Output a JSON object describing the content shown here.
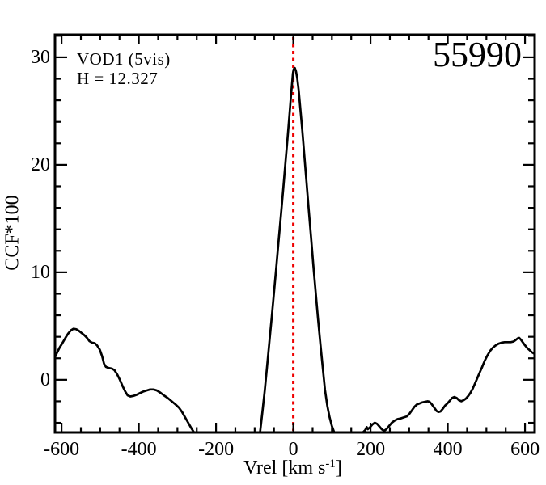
{
  "figure": {
    "annotation_line1": "VOD1 (5vis)",
    "annotation_line2": "H = 12.327",
    "epoch_label": "55990"
  },
  "axes_titles": {
    "x_main": "Vrel [km s",
    "x_sup": "-1",
    "x_end": "]",
    "y_title": "CCF*100"
  },
  "colors": {
    "background": "#ffffff",
    "frame": "#000000",
    "curve": "#000000",
    "text": "#000000",
    "marker_line": "#ee0000"
  },
  "chart_data": {
    "type": "line",
    "title": "",
    "xlabel": "Vrel [km s^-1]",
    "ylabel": "CCF*100",
    "xlim": [
      -617,
      625
    ],
    "ylim": [
      -4.9,
      32.1
    ],
    "grid": false,
    "legend": "none",
    "x_major_ticks": [
      -600,
      -400,
      -200,
      0,
      200,
      400,
      600
    ],
    "x_tick_labels": [
      "-600",
      "-400",
      "-200",
      "0",
      "200",
      "400",
      "600"
    ],
    "x_minor_step": 50,
    "y_major_ticks": [
      0,
      10,
      20,
      30
    ],
    "y_tick_labels": [
      "0",
      "10",
      "20",
      "30"
    ],
    "y_minor_step": 2,
    "marker_line": {
      "x": 0,
      "color": "#ee0000",
      "style": "dotted"
    },
    "annotations": [
      {
        "text": "VOD1 (5vis)",
        "x": -560,
        "y": 29.5
      },
      {
        "text": "H = 12.327",
        "x": -560,
        "y": 27.6
      },
      {
        "text": "55990",
        "x": 560,
        "y": 29.5
      }
    ],
    "series": [
      {
        "name": "CCF",
        "color": "#000000",
        "segments": [
          [
            [
              -617,
              2.1
            ],
            [
              -612,
              2.5
            ],
            [
              -605,
              3.0
            ],
            [
              -598,
              3.4
            ],
            [
              -590,
              3.9
            ],
            [
              -583,
              4.3
            ],
            [
              -576,
              4.6
            ],
            [
              -569,
              4.75
            ],
            [
              -562,
              4.7
            ],
            [
              -555,
              4.55
            ],
            [
              -548,
              4.35
            ],
            [
              -541,
              4.15
            ],
            [
              -534,
              3.9
            ],
            [
              -528,
              3.6
            ],
            [
              -521,
              3.45
            ],
            [
              -514,
              3.4
            ],
            [
              -508,
              3.2
            ],
            [
              -501,
              2.8
            ],
            [
              -495,
              2.2
            ],
            [
              -490,
              1.5
            ],
            [
              -485,
              1.2
            ],
            [
              -478,
              1.1
            ],
            [
              -470,
              1.05
            ],
            [
              -463,
              0.9
            ],
            [
              -456,
              0.5
            ],
            [
              -449,
              0.0
            ],
            [
              -442,
              -0.6
            ],
            [
              -435,
              -1.1
            ],
            [
              -429,
              -1.45
            ],
            [
              -422,
              -1.55
            ],
            [
              -414,
              -1.5
            ],
            [
              -406,
              -1.4
            ],
            [
              -398,
              -1.25
            ],
            [
              -389,
              -1.1
            ],
            [
              -380,
              -1.0
            ],
            [
              -371,
              -0.9
            ],
            [
              -362,
              -0.9
            ],
            [
              -353,
              -1.0
            ],
            [
              -344,
              -1.2
            ],
            [
              -335,
              -1.45
            ],
            [
              -325,
              -1.7
            ],
            [
              -315,
              -2.0
            ],
            [
              -305,
              -2.3
            ],
            [
              -296,
              -2.6
            ],
            [
              -288,
              -3.0
            ],
            [
              -280,
              -3.5
            ],
            [
              -272,
              -4.0
            ],
            [
              -264,
              -4.5
            ],
            [
              -257,
              -4.9
            ]
          ],
          [
            [
              -86,
              -4.9
            ],
            [
              -80,
              -3.0
            ],
            [
              -74,
              -1.0
            ],
            [
              -68,
              1.2
            ],
            [
              -62,
              3.5
            ],
            [
              -56,
              5.8
            ],
            [
              -50,
              8.1
            ],
            [
              -44,
              10.5
            ],
            [
              -38,
              12.9
            ],
            [
              -32,
              15.3
            ],
            [
              -26,
              17.8
            ],
            [
              -20,
              20.3
            ],
            [
              -15,
              22.4
            ],
            [
              -10,
              24.6
            ],
            [
              -6,
              26.4
            ],
            [
              -3,
              27.7
            ],
            [
              -1,
              28.5
            ],
            [
              1,
              28.9
            ],
            [
              4,
              29.0
            ],
            [
              7,
              28.7
            ],
            [
              10,
              28.1
            ],
            [
              14,
              26.9
            ],
            [
              18,
              25.3
            ],
            [
              23,
              23.3
            ],
            [
              28,
              21.1
            ],
            [
              34,
              18.5
            ],
            [
              40,
              15.8
            ],
            [
              46,
              13.2
            ],
            [
              52,
              10.6
            ],
            [
              58,
              8.1
            ],
            [
              64,
              5.7
            ],
            [
              70,
              3.4
            ],
            [
              76,
              1.2
            ],
            [
              82,
              -0.9
            ],
            [
              88,
              -2.4
            ],
            [
              94,
              -3.5
            ],
            [
              100,
              -4.3
            ],
            [
              106,
              -4.9
            ]
          ],
          [
            [
              180,
              -4.9
            ],
            [
              186,
              -4.7
            ],
            [
              190,
              -4.4
            ],
            [
              193,
              -4.6
            ],
            [
              199,
              -4.4
            ],
            [
              205,
              -4.15
            ],
            [
              211,
              -4.0
            ],
            [
              217,
              -4.1
            ],
            [
              223,
              -4.35
            ],
            [
              229,
              -4.6
            ],
            [
              235,
              -4.75
            ],
            [
              241,
              -4.6
            ],
            [
              248,
              -4.3
            ],
            [
              255,
              -4.0
            ],
            [
              262,
              -3.8
            ],
            [
              270,
              -3.65
            ],
            [
              278,
              -3.6
            ],
            [
              286,
              -3.5
            ],
            [
              294,
              -3.4
            ],
            [
              301,
              -3.15
            ],
            [
              308,
              -2.8
            ],
            [
              314,
              -2.5
            ],
            [
              320,
              -2.3
            ],
            [
              327,
              -2.2
            ],
            [
              334,
              -2.1
            ],
            [
              341,
              -2.05
            ],
            [
              348,
              -2.0
            ],
            [
              353,
              -2.05
            ],
            [
              359,
              -2.3
            ],
            [
              365,
              -2.6
            ],
            [
              371,
              -2.9
            ],
            [
              376,
              -3.0
            ],
            [
              381,
              -2.95
            ],
            [
              387,
              -2.7
            ],
            [
              393,
              -2.4
            ],
            [
              399,
              -2.2
            ],
            [
              405,
              -1.95
            ],
            [
              411,
              -1.7
            ],
            [
              417,
              -1.6
            ],
            [
              423,
              -1.7
            ],
            [
              429,
              -1.9
            ],
            [
              435,
              -2.0
            ],
            [
              441,
              -1.9
            ],
            [
              447,
              -1.75
            ],
            [
              453,
              -1.5
            ],
            [
              459,
              -1.2
            ],
            [
              465,
              -0.8
            ],
            [
              471,
              -0.3
            ],
            [
              477,
              0.2
            ],
            [
              483,
              0.7
            ],
            [
              489,
              1.2
            ],
            [
              496,
              1.8
            ],
            [
              503,
              2.3
            ],
            [
              510,
              2.7
            ],
            [
              517,
              3.0
            ],
            [
              524,
              3.2
            ],
            [
              531,
              3.35
            ],
            [
              539,
              3.45
            ],
            [
              547,
              3.5
            ],
            [
              555,
              3.5
            ],
            [
              563,
              3.5
            ],
            [
              570,
              3.55
            ],
            [
              576,
              3.7
            ],
            [
              581,
              3.85
            ],
            [
              585,
              3.9
            ],
            [
              589,
              3.75
            ],
            [
              594,
              3.5
            ],
            [
              600,
              3.2
            ],
            [
              606,
              2.95
            ],
            [
              612,
              2.75
            ],
            [
              618,
              2.55
            ],
            [
              625,
              2.4
            ]
          ]
        ]
      }
    ]
  }
}
